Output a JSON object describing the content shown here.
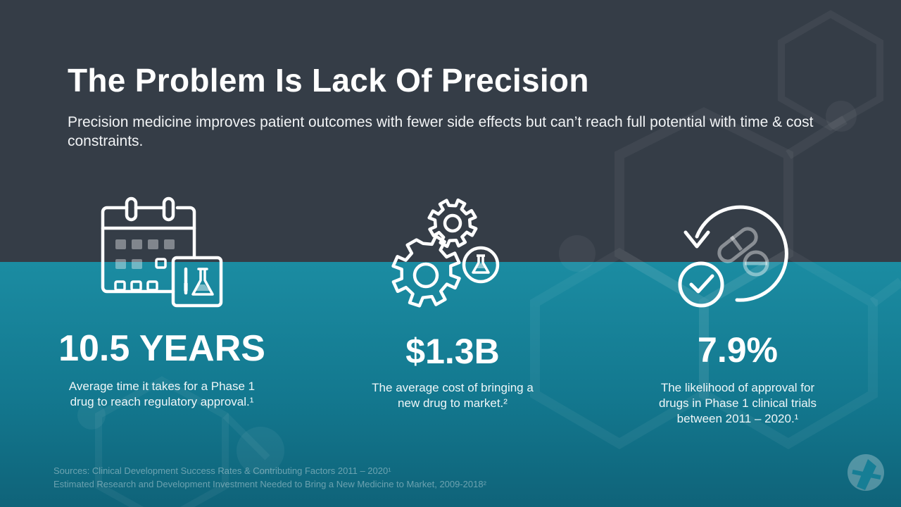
{
  "slide": {
    "title": "The Problem Is Lack Of Precision",
    "subtitle": "Precision medicine improves patient outcomes with fewer side effects but can’t reach full potential with time & cost constraints."
  },
  "stats": [
    {
      "value": "10.5 YEARS",
      "description": "Average time it takes for a Phase 1 drug to reach regulatory approval.¹",
      "icon": "calendar-flask-icon"
    },
    {
      "value": "$1.3B",
      "description": "The average cost of bringing a new drug to market.²",
      "icon": "gears-flask-icon"
    },
    {
      "value": "7.9%",
      "description": "The likelihood of approval for drugs in Phase 1 clinical trials between 2011 – 2020.¹",
      "icon": "pill-approval-cycle-icon"
    }
  ],
  "sources": {
    "line1": "Sources: Clinical Development Success Rates & Contributing Factors 2011 – 2020¹",
    "line2": "Estimated Research and Development Investment Needed to Bring a New Medicine to Market, 2009-2018²"
  },
  "colors": {
    "top_background": "#353d47",
    "bottom_background": "#1b8ca2",
    "text": "#ffffff"
  }
}
